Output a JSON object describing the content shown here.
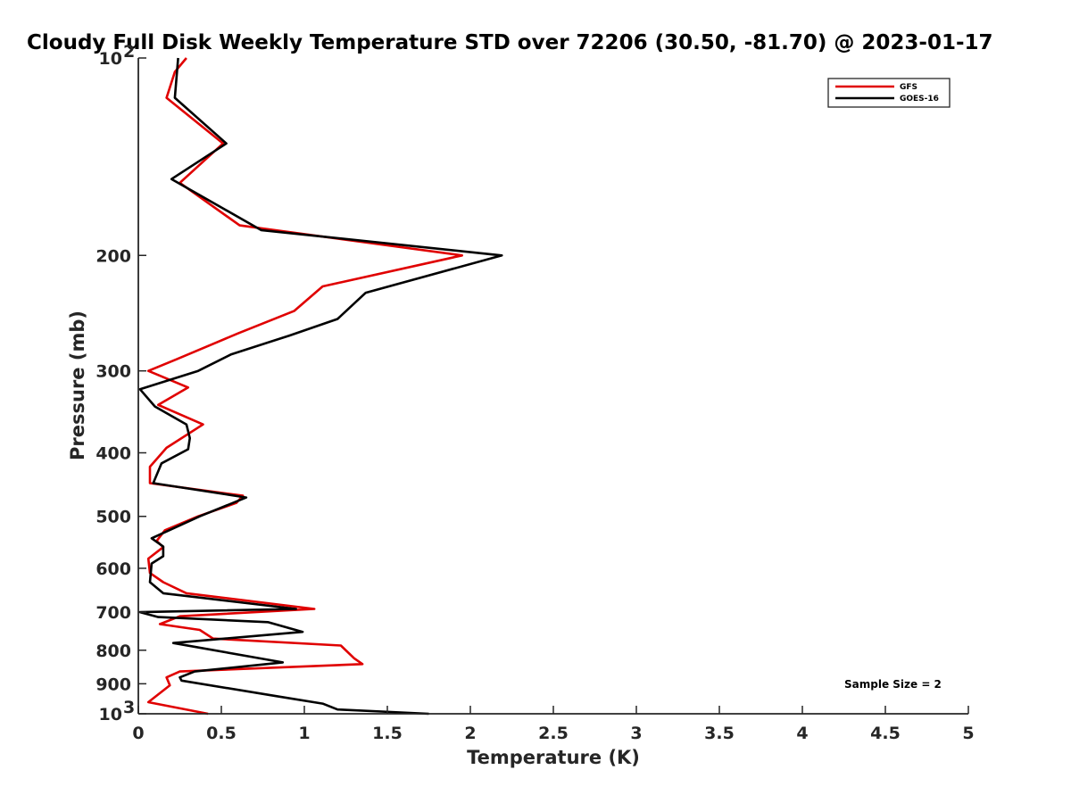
{
  "chart_data": {
    "type": "line",
    "title": "Cloudy Full Disk Weekly Temperature STD over 72206 (30.50, -81.70) @ 2023-01-17",
    "xlabel": "Temperature (K)",
    "ylabel": "Pressure (mb)",
    "xlim": [
      0,
      5
    ],
    "ylim": [
      100,
      1000
    ],
    "yscale": "log",
    "y_reversed": true,
    "grid": false,
    "x_ticks": [
      "0",
      "0.5",
      "1",
      "1.5",
      "2",
      "2.5",
      "3",
      "3.5",
      "4",
      "4.5",
      "5"
    ],
    "y_ticks": [
      {
        "value": 100,
        "label": "10",
        "sup": "2"
      },
      {
        "value": 200,
        "label": "200"
      },
      {
        "value": 300,
        "label": "300"
      },
      {
        "value": 400,
        "label": "400"
      },
      {
        "value": 500,
        "label": "500"
      },
      {
        "value": 600,
        "label": "600"
      },
      {
        "value": 700,
        "label": "700"
      },
      {
        "value": 800,
        "label": "800"
      },
      {
        "value": 900,
        "label": "900"
      },
      {
        "value": 1000,
        "label": "10",
        "sup": "3"
      }
    ],
    "legend_position": "top-right",
    "annotation": "Sample Size = 2",
    "series": [
      {
        "name": "GFS",
        "color": "#e00000",
        "points": [
          [
            0.29,
            100
          ],
          [
            0.22,
            105
          ],
          [
            0.17,
            115
          ],
          [
            0.51,
            135
          ],
          [
            0.25,
            155
          ],
          [
            0.61,
            180
          ],
          [
            1.95,
            200
          ],
          [
            1.11,
            223
          ],
          [
            0.94,
            243
          ],
          [
            0.6,
            263
          ],
          [
            0.23,
            288
          ],
          [
            0.06,
            300
          ],
          [
            0.3,
            318
          ],
          [
            0.12,
            338
          ],
          [
            0.39,
            362
          ],
          [
            0.17,
            393
          ],
          [
            0.07,
            420
          ],
          [
            0.07,
            445
          ],
          [
            0.63,
            465
          ],
          [
            0.59,
            477
          ],
          [
            0.36,
            500
          ],
          [
            0.16,
            525
          ],
          [
            0.11,
            545
          ],
          [
            0.15,
            557
          ],
          [
            0.06,
            580
          ],
          [
            0.07,
            610
          ],
          [
            0.15,
            630
          ],
          [
            0.29,
            655
          ],
          [
            1.06,
            692
          ],
          [
            0.25,
            710
          ],
          [
            0.13,
            730
          ],
          [
            0.37,
            745
          ],
          [
            0.45,
            768
          ],
          [
            1.22,
            787
          ],
          [
            1.3,
            823
          ],
          [
            1.35,
            840
          ],
          [
            0.25,
            862
          ],
          [
            0.17,
            880
          ],
          [
            0.19,
            905
          ],
          [
            0.06,
            960
          ],
          [
            0.42,
            1000
          ]
        ]
      },
      {
        "name": "GOES-16",
        "color": "#000000",
        "points": [
          [
            0.24,
            100
          ],
          [
            0.22,
            115
          ],
          [
            0.53,
            135
          ],
          [
            0.2,
            153
          ],
          [
            0.74,
            183
          ],
          [
            2.19,
            200
          ],
          [
            1.37,
            228
          ],
          [
            1.2,
            250
          ],
          [
            0.91,
            265
          ],
          [
            0.56,
            283
          ],
          [
            0.36,
            300
          ],
          [
            0.01,
            320
          ],
          [
            0.1,
            340
          ],
          [
            0.29,
            362
          ],
          [
            0.31,
            380
          ],
          [
            0.3,
            395
          ],
          [
            0.14,
            415
          ],
          [
            0.09,
            445
          ],
          [
            0.65,
            468
          ],
          [
            0.37,
            500
          ],
          [
            0.08,
            540
          ],
          [
            0.15,
            556
          ],
          [
            0.15,
            575
          ],
          [
            0.08,
            590
          ],
          [
            0.07,
            630
          ],
          [
            0.15,
            655
          ],
          [
            0.95,
            692
          ],
          [
            0.01,
            700
          ],
          [
            0.12,
            712
          ],
          [
            0.78,
            725
          ],
          [
            0.99,
            750
          ],
          [
            0.21,
            780
          ],
          [
            0.87,
            835
          ],
          [
            0.34,
            862
          ],
          [
            0.25,
            880
          ],
          [
            0.26,
            890
          ],
          [
            0.83,
            940
          ],
          [
            1.11,
            965
          ],
          [
            1.2,
            985
          ],
          [
            1.75,
            1000
          ]
        ]
      }
    ]
  }
}
